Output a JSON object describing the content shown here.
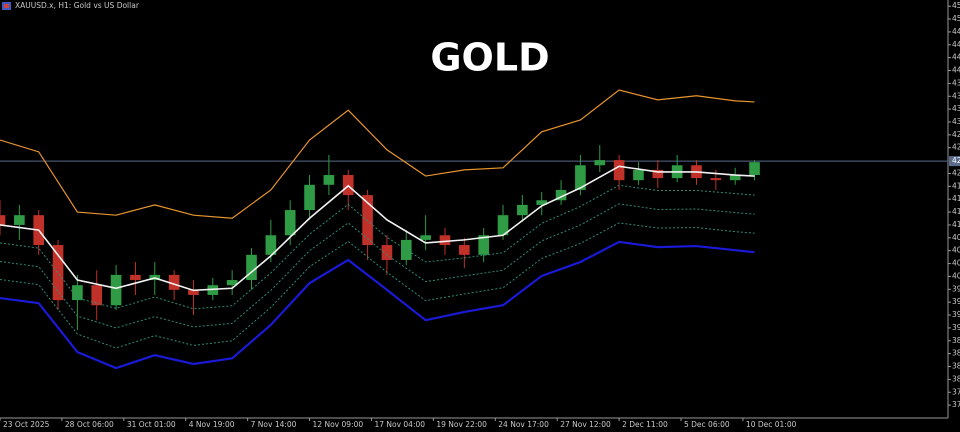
{
  "chart_data": {
    "type": "candlestick",
    "title": "GOLD",
    "subtitle": "XAUUSD.x, H1:  Gold vs US Dollar",
    "xlim": [
      0,
      49
    ],
    "ylim": [
      3725,
      4537
    ],
    "xticks": [
      {
        "value": 0,
        "label": "23 Oct 2025"
      },
      {
        "value": 3.2,
        "label": "28 Oct 06:00"
      },
      {
        "value": 6.4,
        "label": "31 Oct 01:00"
      },
      {
        "value": 9.6,
        "label": "4 Nov 19:00"
      },
      {
        "value": 12.8,
        "label": "7 Nov 14:00"
      },
      {
        "value": 16,
        "label": "12 Nov 09:00"
      },
      {
        "value": 19.2,
        "label": "17 Nov 04:00"
      },
      {
        "value": 22.4,
        "label": "19 Nov 22:00"
      },
      {
        "value": 25.6,
        "label": "24 Nov 17:00"
      },
      {
        "value": 28.8,
        "label": "27 Nov 12:00"
      },
      {
        "value": 32,
        "label": "2 Dec 11:00"
      },
      {
        "value": 35.2,
        "label": "5 Dec 06:00"
      },
      {
        "value": 38.4,
        "label": "10 Dec 01:00"
      }
    ],
    "yticks": [
      {
        "value": 4525,
        "label": "45"
      },
      {
        "value": 4500,
        "label": "45"
      },
      {
        "value": 4475,
        "label": "44"
      },
      {
        "value": 4450,
        "label": "44"
      },
      {
        "value": 4425,
        "label": "44"
      },
      {
        "value": 4400,
        "label": "44"
      },
      {
        "value": 4375,
        "label": "43"
      },
      {
        "value": 4350,
        "label": "43"
      },
      {
        "value": 4325,
        "label": "43"
      },
      {
        "value": 4300,
        "label": "43"
      },
      {
        "value": 4275,
        "label": "42"
      },
      {
        "value": 4250,
        "label": "42"
      },
      {
        "value": 4200,
        "label": "42"
      },
      {
        "value": 4175,
        "label": "41"
      },
      {
        "value": 4150,
        "label": "41"
      },
      {
        "value": 4125,
        "label": "41"
      },
      {
        "value": 4100,
        "label": "41"
      },
      {
        "value": 4075,
        "label": "40"
      },
      {
        "value": 4050,
        "label": "40"
      },
      {
        "value": 4025,
        "label": "40"
      },
      {
        "value": 4000,
        "label": "40"
      },
      {
        "value": 3975,
        "label": "39"
      },
      {
        "value": 3950,
        "label": "39"
      },
      {
        "value": 3925,
        "label": "39"
      },
      {
        "value": 3900,
        "label": "39"
      },
      {
        "value": 3875,
        "label": "38"
      },
      {
        "value": 3850,
        "label": "38"
      },
      {
        "value": 3825,
        "label": "38"
      },
      {
        "value": 3800,
        "label": "38"
      },
      {
        "value": 3775,
        "label": "37"
      },
      {
        "value": 3750,
        "label": "37"
      }
    ],
    "price_line": {
      "value": 4224,
      "label": "42",
      "color": "#5a6a8a"
    },
    "candles": {
      "up_color": "#2f9b45",
      "down_color": "#c0312a",
      "x": [
        0,
        1,
        2,
        3,
        4,
        5,
        6,
        7,
        8,
        9,
        10,
        11,
        12,
        13,
        14,
        15,
        16,
        17,
        18,
        19,
        20,
        21,
        22,
        23,
        24,
        25,
        26,
        27,
        28,
        29,
        30,
        31,
        32,
        33,
        34,
        35,
        36,
        37,
        38,
        39
      ],
      "open": [
        4119,
        4100,
        4119,
        4061,
        3954,
        3983,
        3944,
        4003,
        3993,
        4003,
        3974,
        3964,
        3983,
        3993,
        4042,
        4080,
        4129,
        4178,
        4197,
        4158,
        4061,
        4032,
        4071,
        4080,
        4061,
        4042,
        4080,
        4119,
        4139,
        4148,
        4168,
        4216,
        4226,
        4187,
        4207,
        4191,
        4216,
        4191,
        4187,
        4197
      ],
      "high": [
        4148,
        4139,
        4129,
        4071,
        4003,
        4012,
        4022,
        4028,
        4028,
        4012,
        3993,
        3997,
        4012,
        4055,
        4110,
        4148,
        4197,
        4236,
        4207,
        4168,
        4080,
        4090,
        4119,
        4094,
        4075,
        4094,
        4139,
        4158,
        4164,
        4187,
        4236,
        4255,
        4236,
        4222,
        4226,
        4236,
        4226,
        4207,
        4211,
        4226
      ],
      "low": [
        4080,
        4071,
        4042,
        3935,
        3896,
        3915,
        3935,
        3964,
        3964,
        3954,
        3925,
        3954,
        3964,
        3974,
        4028,
        4061,
        4110,
        4158,
        4129,
        4032,
        4003,
        4022,
        4051,
        4042,
        4016,
        4028,
        4071,
        4106,
        4119,
        4139,
        4158,
        4203,
        4168,
        4178,
        4172,
        4183,
        4178,
        4168,
        4178,
        4187
      ],
      "close": [
        4100,
        4119,
        4061,
        3954,
        3983,
        3944,
        4003,
        3993,
        4003,
        3974,
        3964,
        3983,
        3993,
        4042,
        4080,
        4129,
        4178,
        4197,
        4158,
        4061,
        4032,
        4071,
        4080,
        4061,
        4042,
        4080,
        4119,
        4139,
        4148,
        4168,
        4216,
        4226,
        4187,
        4207,
        4191,
        4216,
        4191,
        4187,
        4197,
        4222
      ]
    },
    "x": [
      0,
      2,
      4,
      6,
      8,
      10,
      12,
      14,
      16,
      18,
      20,
      22,
      24,
      26,
      28,
      30,
      32,
      34,
      36,
      38,
      39
    ],
    "series": [
      {
        "color": "#e8952f",
        "style": "solid",
        "width": 1.2,
        "values": [
          4265,
          4242,
          4125,
          4119,
          4139,
          4119,
          4113,
          4168,
          4265,
          4323,
          4246,
          4195,
          4207,
          4211,
          4281,
          4304,
          4362,
          4343,
          4351,
          4341,
          4339
        ]
      },
      {
        "color": "#f2f2f2",
        "style": "solid",
        "width": 1.6,
        "values": [
          4100,
          4090,
          3993,
          3977,
          3997,
          3973,
          3977,
          4040,
          4113,
          4176,
          4110,
          4065,
          4071,
          4080,
          4137,
          4172,
          4214,
          4203,
          4203,
          4197,
          4195
        ]
      },
      {
        "color": "#2e8b7a",
        "style": "dotted",
        "width": 1,
        "values": [
          4065,
          4055,
          3958,
          3938,
          3960,
          3937,
          3943,
          4007,
          4082,
          4140,
          4076,
          4028,
          4036,
          4046,
          4103,
          4136,
          4177,
          4167,
          4167,
          4161,
          4158
        ]
      },
      {
        "color": "#2e8b7a",
        "style": "dotted",
        "width": 1,
        "values": [
          4029,
          4019,
          3923,
          3900,
          3922,
          3902,
          3909,
          3973,
          4050,
          4104,
          4042,
          3990,
          4001,
          4012,
          4069,
          4100,
          4141,
          4130,
          4131,
          4124,
          4121
        ]
      },
      {
        "color": "#2e8b7a",
        "style": "dotted",
        "width": 1,
        "values": [
          3994,
          3984,
          3888,
          3861,
          3885,
          3866,
          3875,
          3940,
          4019,
          4068,
          4008,
          3953,
          3966,
          3978,
          4035,
          4064,
          4104,
          4094,
          4095,
          4087,
          4084
        ]
      },
      {
        "color": "#1a1ad6",
        "style": "solid",
        "width": 2.2,
        "values": [
          3958,
          3948,
          3853,
          3822,
          3847,
          3830,
          3841,
          3906,
          3987,
          4032,
          3974,
          3915,
          3931,
          3944,
          4001,
          4028,
          4067,
          4057,
          4059,
          4051,
          4047
        ]
      }
    ]
  }
}
